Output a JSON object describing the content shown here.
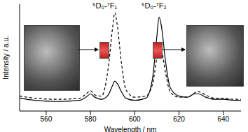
{
  "chart_data": {
    "type": "line",
    "x_label": "Wavelength / nm",
    "y_label": "Intensity / a.u.",
    "annotations": [
      "⁵D₀-⁷F₁",
      "⁵D₀-⁷F₂"
    ],
    "x": [
      548,
      555,
      565,
      575,
      578,
      580,
      582,
      585,
      588,
      590,
      591,
      592,
      594,
      596,
      600,
      605,
      608,
      610,
      611,
      612,
      614,
      616,
      620,
      624,
      627,
      629,
      632,
      636,
      640,
      645,
      648
    ],
    "series": [
      {
        "color": "#000000",
        "line_style": "solid",
        "values": [
          12,
          10,
          9,
          10,
          13,
          16,
          13,
          11,
          15,
          24,
          28,
          26,
          18,
          12,
          10,
          12,
          30,
          70,
          88,
          80,
          45,
          22,
          14,
          13,
          16,
          16,
          13,
          11,
          11,
          10,
          10
        ]
      },
      {
        "color": "#000000",
        "line_style": "dashed",
        "values": [
          14,
          12,
          11,
          12,
          16,
          19,
          15,
          14,
          40,
          78,
          92,
          82,
          45,
          20,
          13,
          14,
          25,
          50,
          62,
          58,
          35,
          18,
          13,
          13,
          17,
          18,
          15,
          12,
          12,
          11,
          11
        ]
      }
    ],
    "xlim": [
      548,
      648
    ],
    "xticks": [
      560,
      580,
      600,
      620,
      640
    ],
    "ylim": [
      0,
      100
    ],
    "tick_labels": "x"
  }
}
